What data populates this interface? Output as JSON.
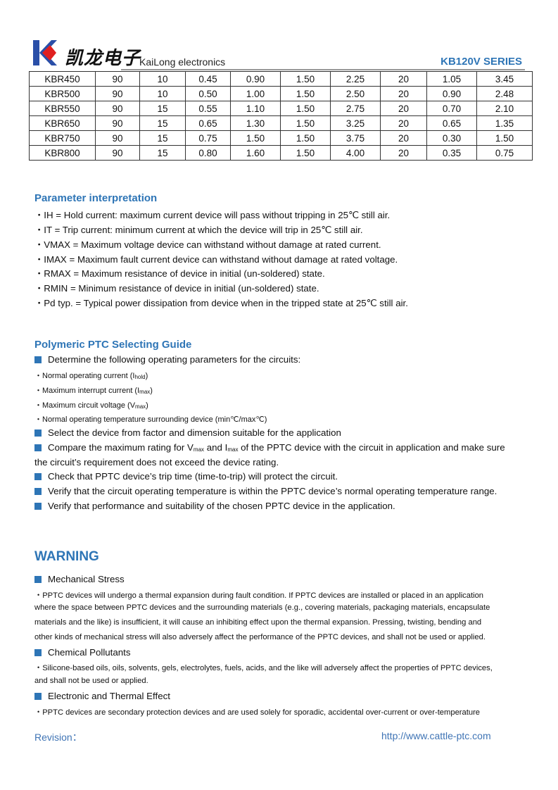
{
  "header": {
    "logo_cn": "凯龙电子",
    "brand": "KaiLong electronics",
    "series": "KB120V SERIES",
    "colors": {
      "logo_blue": "#2a4fa8",
      "logo_red": "#e02020",
      "accent": "#2e75b6"
    }
  },
  "table": {
    "rows": [
      [
        "KBR450",
        "90",
        "10",
        "0.45",
        "0.90",
        "1.50",
        "2.25",
        "20",
        "1.05",
        "3.45"
      ],
      [
        "KBR500",
        "90",
        "10",
        "0.50",
        "1.00",
        "1.50",
        "2.50",
        "20",
        "0.90",
        "2.48"
      ],
      [
        "KBR550",
        "90",
        "15",
        "0.55",
        "1.10",
        "1.50",
        "2.75",
        "20",
        "0.70",
        "2.10"
      ],
      [
        "KBR650",
        "90",
        "15",
        "0.65",
        "1.30",
        "1.50",
        "3.25",
        "20",
        "0.65",
        "1.35"
      ],
      [
        "KBR750",
        "90",
        "15",
        "0.75",
        "1.50",
        "1.50",
        "3.75",
        "20",
        "0.30",
        "1.50"
      ],
      [
        "KBR800",
        "90",
        "15",
        "0.80",
        "1.60",
        "1.50",
        "4.00",
        "20",
        "0.35",
        "0.75"
      ]
    ]
  },
  "params": {
    "title": "Parameter interpretation",
    "items": [
      "・IH = Hold current: maximum current device will pass without tripping in 25℃  still air.",
      "・IT = Trip current: minimum current at which the device will trip in 25℃  still air.",
      "・VMAX = Maximum voltage device can withstand without damage at rated current.",
      "・IMAX = Maximum fault current device can withstand without damage at rated voltage.",
      "・RMAX = Maximum resistance of device in initial (un-soldered) state.",
      "・RMIN = Minimum resistance of device in initial (un-soldered) state.",
      "・Pd typ. = Typical power dissipation from device when in the tripped state at 25℃  still air."
    ]
  },
  "guide": {
    "title": "Polymeric PTC Selecting Guide",
    "step1": "Determine the following operating parameters for the circuits:",
    "sub1": "・Normal operating current (I",
    "sub1_s": "hold",
    "sub2": "・Maximum interrupt current (I",
    "sub2_s": "max",
    "sub3": "・Maximum circuit voltage (V",
    "sub3_s": "max",
    "close": ")",
    "sub4": "・Normal operating temperature surrounding device (min℃/max℃)",
    "step2": "Select the device from factor and dimension suitable for the application",
    "step3a": "Compare the maximum rating for V",
    "step3_s1": "max",
    "step3b": " and I",
    "step3_s2": "max",
    "step3c": " of the PPTC device with the circuit in application and make sure",
    "step3d": "the circuit’s requirement does not exceed the device rating.",
    "step4": "Check that PPTC device’s trip time (time-to-trip) will protect the circuit.",
    "step5": "Verify that the circuit operating temperature is within the PPTC device’s normal operating temperature range.",
    "step6": "Verify that performance and suitability of the chosen PPTC device in the application."
  },
  "warning": {
    "title": "WARNING",
    "mech": "Mechanical Stress",
    "mech_lines": [
      "・PPTC devices will undergo a thermal expansion during fault condition. If PPTC devices are installed or placed in an application",
      "where the space between PPTC devices and the surrounding materials (e.g., covering materials, packaging materials, encapsulate",
      "materials and the like) is insufficient, it will cause an inhibiting effect upon the thermal expansion. Pressing, twisting, bending and",
      "other kinds of mechanical stress will also adversely affect the performance of the PPTC devices, and shall not be used or applied."
    ],
    "chem": "Chemical Pollutants",
    "chem_lines": [
      "・Silicone-based oils, oils, solvents, gels, electrolytes, fuels, acids, and the like will adversely affect the properties of PPTC devices,",
      "and shall not be used or applied."
    ],
    "elec": "Electronic and Thermal Effect",
    "elec_lines": [
      "・PPTC devices are secondary protection devices and are used solely for sporadic, accidental over-current or over-temperature"
    ]
  },
  "footer": {
    "revision": "Revision：",
    "url": "http://www.cattle-ptc.com"
  }
}
